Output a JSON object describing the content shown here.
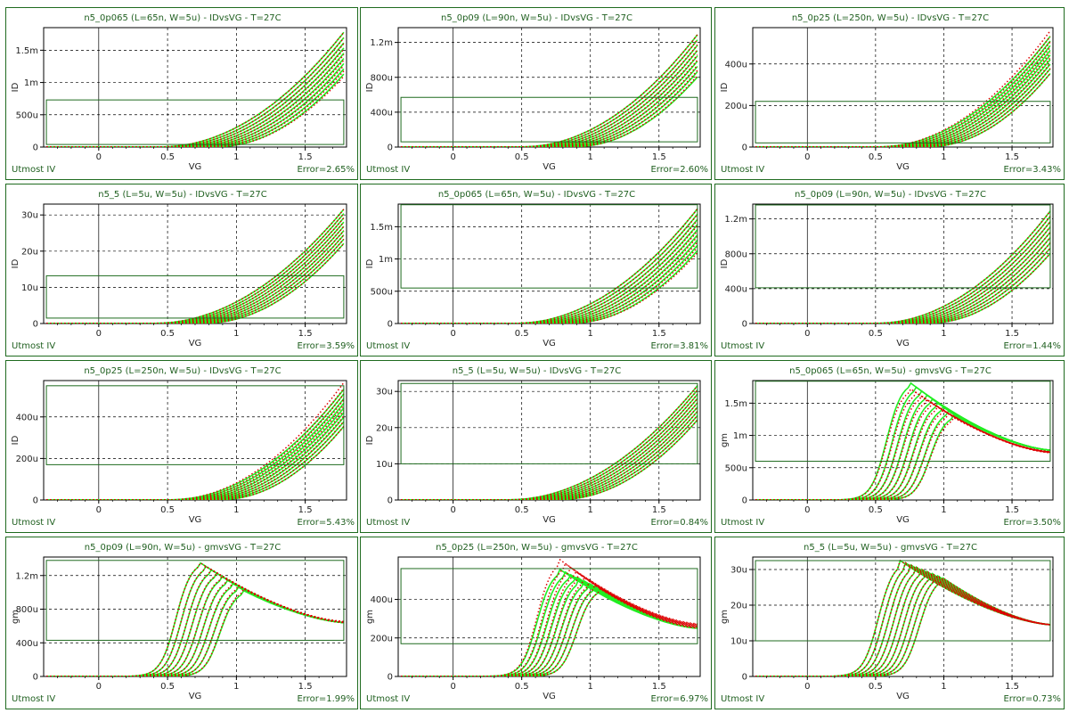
{
  "footer_left": "Utmost IV",
  "colors": {
    "measured": "#22ee22",
    "simulated": "#dd0000",
    "frame": "#1f6b1f",
    "grid": "#000000"
  },
  "chart_data": [
    {
      "type": "line",
      "title": "n5_0p065 (L=65n, W=5u) - IDvsVG - T=27C",
      "xlabel": "VG",
      "ylabel": "ID",
      "xlim": [
        -0.4,
        1.8
      ],
      "xticks": [
        0,
        0.5,
        1,
        1.5
      ],
      "xtick_labels": [
        "0",
        "0.5",
        "1",
        "1.5"
      ],
      "ylim": [
        0,
        0.00185
      ],
      "yticks": [
        0,
        0.0005,
        0.001,
        0.0015
      ],
      "ytick_labels": [
        "0",
        "500u",
        "1m",
        "1.5m"
      ],
      "curve": "id",
      "vth": [
        0.45,
        0.85
      ],
      "ymax_meas": [
        0.00183,
        0.00118
      ],
      "sim_scale": [
        1.0,
        0.97
      ],
      "box": {
        "x": [
          -0.38,
          1.78
        ],
        "y": [
          4e-05,
          0.00073
        ]
      },
      "error": "Error=2.65%"
    },
    {
      "type": "line",
      "title": "n5_0p09 (L=90n, W=5u) - IDvsVG - T=27C",
      "xlabel": "VG",
      "ylabel": "ID",
      "xlim": [
        -0.4,
        1.8
      ],
      "xticks": [
        0,
        0.5,
        1,
        1.5
      ],
      "xtick_labels": [
        "0",
        "0.5",
        "1",
        "1.5"
      ],
      "ylim": [
        0,
        0.00137
      ],
      "yticks": [
        0,
        0.0004,
        0.0008,
        0.0012
      ],
      "ytick_labels": [
        "0",
        "400u",
        "800u",
        "1.2m"
      ],
      "curve": "id",
      "vth": [
        0.5,
        0.88
      ],
      "ymax_meas": [
        0.00133,
        0.00084
      ],
      "sim_scale": [
        1.0,
        1.02
      ],
      "box": {
        "x": [
          -0.38,
          1.78
        ],
        "y": [
          6e-05,
          0.00057
        ]
      },
      "error": "Error=2.60%"
    },
    {
      "type": "line",
      "title": "n5_0p25 (L=250n, W=5u) - IDvsVG - T=27C",
      "xlabel": "VG",
      "ylabel": "ID",
      "xlim": [
        -0.4,
        1.8
      ],
      "xticks": [
        0,
        0.5,
        1,
        1.5
      ],
      "xtick_labels": [
        "0",
        "0.5",
        "1",
        "1.5"
      ],
      "ylim": [
        0,
        0.000575
      ],
      "yticks": [
        0,
        0.0002,
        0.0004
      ],
      "ytick_labels": [
        "0",
        "200u",
        "400u"
      ],
      "curve": "id",
      "vth": [
        0.52,
        0.88
      ],
      "ymax_meas": [
        0.00055,
        0.00037
      ],
      "sim_scale": [
        1.05,
        1.0
      ],
      "box": {
        "x": [
          -0.38,
          1.78
        ],
        "y": [
          2e-05,
          0.00022
        ]
      },
      "error": "Error=3.43%"
    },
    {
      "type": "line",
      "title": "n5_5 (L=5u, W=5u) - IDvsVG - T=27C",
      "xlabel": "VG",
      "ylabel": "ID",
      "xlim": [
        -0.4,
        1.8
      ],
      "xticks": [
        0,
        0.5,
        1,
        1.5
      ],
      "xtick_labels": [
        "0",
        "0.5",
        "1",
        "1.5"
      ],
      "ylim": [
        0,
        3.3e-05
      ],
      "yticks": [
        0,
        1e-05,
        2e-05,
        3e-05
      ],
      "ytick_labels": [
        "0",
        "10u",
        "20u",
        "30u"
      ],
      "curve": "id",
      "vth": [
        0.4,
        0.76
      ],
      "ymax_meas": [
        3.25e-05,
        2.3e-05
      ],
      "sim_scale": [
        1.0,
        1.0
      ],
      "box": {
        "x": [
          -0.38,
          1.78
        ],
        "y": [
          1.5e-06,
          1.32e-05
        ]
      },
      "error": "Error=3.59%"
    },
    {
      "type": "line",
      "title": "n5_0p065 (L=65n, W=5u) - IDvsVG - T=27C",
      "xlabel": "VG",
      "ylabel": "ID",
      "xlim": [
        -0.4,
        1.8
      ],
      "xticks": [
        0,
        0.5,
        1,
        1.5
      ],
      "xtick_labels": [
        "0",
        "0.5",
        "1",
        "1.5"
      ],
      "ylim": [
        0,
        0.00185
      ],
      "yticks": [
        0,
        0.0005,
        0.001,
        0.0015
      ],
      "ytick_labels": [
        "0",
        "500u",
        "1m",
        "1.5m"
      ],
      "curve": "id",
      "vth": [
        0.45,
        0.85
      ],
      "ymax_meas": [
        0.00183,
        0.00118
      ],
      "sim_scale": [
        1.0,
        0.97
      ],
      "box": {
        "x": [
          -0.38,
          1.78
        ],
        "y": [
          0.00055,
          0.00184
        ]
      },
      "error": "Error=3.81%"
    },
    {
      "type": "line",
      "title": "n5_0p09 (L=90n, W=5u) - IDvsVG - T=27C",
      "xlabel": "VG",
      "ylabel": "ID",
      "xlim": [
        -0.4,
        1.8
      ],
      "xticks": [
        0,
        0.5,
        1,
        1.5
      ],
      "xtick_labels": [
        "0",
        "0.5",
        "1",
        "1.5"
      ],
      "ylim": [
        0,
        0.00137
      ],
      "yticks": [
        0,
        0.0004,
        0.0008,
        0.0012
      ],
      "ytick_labels": [
        "0",
        "400u",
        "800u",
        "1.2m"
      ],
      "curve": "id",
      "vth": [
        0.5,
        0.88
      ],
      "ymax_meas": [
        0.00133,
        0.00084
      ],
      "sim_scale": [
        1.0,
        1.0
      ],
      "box": {
        "x": [
          -0.38,
          1.78
        ],
        "y": [
          0.00041,
          0.00136
        ]
      },
      "error": "Error=1.44%"
    },
    {
      "type": "line",
      "title": "n5_0p25 (L=250n, W=5u) - IDvsVG - T=27C",
      "xlabel": "VG",
      "ylabel": "ID",
      "xlim": [
        -0.4,
        1.8
      ],
      "xticks": [
        0,
        0.5,
        1,
        1.5
      ],
      "xtick_labels": [
        "0",
        "0.5",
        "1",
        "1.5"
      ],
      "ylim": [
        0,
        0.000575
      ],
      "yticks": [
        0,
        0.0002,
        0.0004
      ],
      "ytick_labels": [
        "0",
        "200u",
        "400u"
      ],
      "curve": "id",
      "vth": [
        0.52,
        0.88
      ],
      "ymax_meas": [
        0.00055,
        0.00037
      ],
      "sim_scale": [
        1.06,
        1.0
      ],
      "box": {
        "x": [
          -0.38,
          1.78
        ],
        "y": [
          0.00017,
          0.00055
        ]
      },
      "error": "Error=5.43%"
    },
    {
      "type": "line",
      "title": "n5_5 (L=5u, W=5u) - IDvsVG - T=27C",
      "xlabel": "VG",
      "ylabel": "ID",
      "xlim": [
        -0.4,
        1.8
      ],
      "xticks": [
        0,
        0.5,
        1,
        1.5
      ],
      "xtick_labels": [
        "0",
        "0.5",
        "1",
        "1.5"
      ],
      "ylim": [
        0,
        3.3e-05
      ],
      "yticks": [
        0,
        1e-05,
        2e-05,
        3e-05
      ],
      "ytick_labels": [
        "0",
        "10u",
        "20u",
        "30u"
      ],
      "curve": "id",
      "vth": [
        0.4,
        0.76
      ],
      "ymax_meas": [
        3.25e-05,
        2.3e-05
      ],
      "sim_scale": [
        1.0,
        1.0
      ],
      "box": {
        "x": [
          -0.38,
          1.78
        ],
        "y": [
          1e-05,
          3.22e-05
        ]
      },
      "error": "Error=0.84%"
    },
    {
      "type": "line",
      "title": "n5_0p065 (L=65n, W=5u) - gmvsVG - T=27C",
      "xlabel": "VG",
      "ylabel": "gm",
      "xlim": [
        -0.4,
        1.8
      ],
      "xticks": [
        0,
        0.5,
        1,
        1.5
      ],
      "xtick_labels": [
        "0",
        "0.5",
        "1",
        "1.5"
      ],
      "ylim": [
        0,
        0.00185
      ],
      "yticks": [
        0,
        0.0005,
        0.001,
        0.0015
      ],
      "ytick_labels": [
        "0",
        "500u",
        "1m",
        "1.5m"
      ],
      "curve": "gm",
      "vth": [
        0.42,
        0.74
      ],
      "peak": [
        0.00184,
        0.00133
      ],
      "end": [
        0.00077,
        0.00077
      ],
      "sim_scale": [
        0.95,
        0.97
      ],
      "box": {
        "x": [
          -0.38,
          1.78
        ],
        "y": [
          0.0006,
          0.00184
        ]
      },
      "error": "Error=3.50%"
    },
    {
      "type": "line",
      "title": "n5_0p09 (L=90n, W=5u) - gmvsVG - T=27C",
      "xlabel": "VG",
      "ylabel": "gm",
      "xlim": [
        -0.4,
        1.8
      ],
      "xticks": [
        0,
        0.5,
        1,
        1.5
      ],
      "xtick_labels": [
        "0",
        "0.5",
        "1",
        "1.5"
      ],
      "ylim": [
        0,
        0.00142
      ],
      "yticks": [
        0,
        0.0004,
        0.0008,
        0.0012
      ],
      "ytick_labels": [
        "0",
        "400u",
        "800u",
        "1.2m"
      ],
      "curve": "gm",
      "vth": [
        0.4,
        0.72
      ],
      "peak": [
        0.00137,
        0.00103
      ],
      "end": [
        0.00064,
        0.00064
      ],
      "sim_scale": [
        1.0,
        1.02
      ],
      "box": {
        "x": [
          -0.38,
          1.78
        ],
        "y": [
          0.00043,
          0.00138
        ]
      },
      "error": "Error=1.99%"
    },
    {
      "type": "line",
      "title": "n5_0p25 (L=250n, W=5u) - gmvsVG - T=27C",
      "xlabel": "VG",
      "ylabel": "gm",
      "xlim": [
        -0.4,
        1.8
      ],
      "xticks": [
        0,
        0.5,
        1,
        1.5
      ],
      "xtick_labels": [
        "0",
        "0.5",
        "1",
        "1.5"
      ],
      "ylim": [
        0,
        0.00062
      ],
      "yticks": [
        0,
        0.0002,
        0.0004
      ],
      "ytick_labels": [
        "0",
        "200u",
        "400u"
      ],
      "curve": "gm",
      "vth": [
        0.45,
        0.74
      ],
      "peak": [
        0.00056,
        0.00046
      ],
      "end": [
        0.00025,
        0.00025
      ],
      "sim_scale": [
        1.09,
        1.0
      ],
      "box": {
        "x": [
          -0.38,
          1.78
        ],
        "y": [
          0.00017,
          0.00056
        ]
      },
      "error": "Error=6.97%"
    },
    {
      "type": "line",
      "title": "n5_5 (L=5u, W=5u) - gmvsVG - T=27C",
      "xlabel": "VG",
      "ylabel": "gm",
      "xlim": [
        -0.4,
        1.8
      ],
      "xticks": [
        0,
        0.5,
        1,
        1.5
      ],
      "xtick_labels": [
        "0",
        "0.5",
        "1",
        "1.5"
      ],
      "ylim": [
        0,
        3.35e-05
      ],
      "yticks": [
        0,
        1e-05,
        2e-05,
        3e-05
      ],
      "ytick_labels": [
        "0",
        "10u",
        "20u",
        "30u"
      ],
      "curve": "gm",
      "vth": [
        0.36,
        0.66
      ],
      "peak": [
        3.25e-05,
        2.8e-05
      ],
      "end": [
        1.45e-05,
        1.45e-05
      ],
      "sim_scale": [
        1.0,
        1.0
      ],
      "box": {
        "x": [
          -0.38,
          1.78
        ],
        "y": [
          1e-05,
          3.25e-05
        ]
      },
      "error": "Error=0.73%"
    }
  ]
}
